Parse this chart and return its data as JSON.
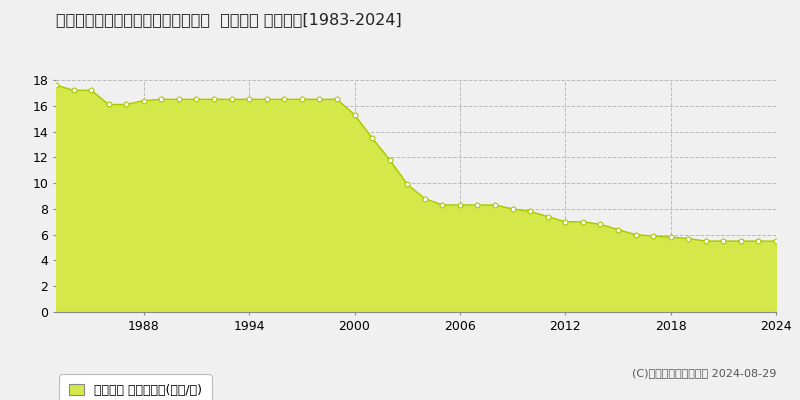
{
  "title": "新潟県長岡市城岡２丁目２３番１外  地価公示 地価推移[1983-2024]",
  "years": [
    1983,
    1984,
    1985,
    1986,
    1987,
    1988,
    1989,
    1990,
    1991,
    1992,
    1993,
    1994,
    1995,
    1996,
    1997,
    1998,
    1999,
    2000,
    2001,
    2002,
    2003,
    2004,
    2005,
    2006,
    2007,
    2008,
    2009,
    2010,
    2011,
    2012,
    2013,
    2014,
    2015,
    2016,
    2017,
    2018,
    2019,
    2020,
    2021,
    2022,
    2023,
    2024
  ],
  "values": [
    17.6,
    17.2,
    17.2,
    16.1,
    16.1,
    16.4,
    16.5,
    16.5,
    16.5,
    16.5,
    16.5,
    16.5,
    16.5,
    16.5,
    16.5,
    16.5,
    16.5,
    15.3,
    13.5,
    11.8,
    9.9,
    8.8,
    8.3,
    8.3,
    8.3,
    8.3,
    8.0,
    7.8,
    7.4,
    7.0,
    7.0,
    6.8,
    6.4,
    6.0,
    5.9,
    5.8,
    5.7,
    5.5,
    5.5,
    5.5,
    5.5,
    5.5
  ],
  "fill_color": "#d4e84a",
  "line_color": "#a8c800",
  "marker_facecolor": "#ffffff",
  "marker_edgecolor": "#a8c800",
  "bg_color": "#f0f0f0",
  "plot_bg_color": "#f0f0f0",
  "grid_color": "#bbbbbb",
  "ylim": [
    0,
    18
  ],
  "yticks": [
    0,
    2,
    4,
    6,
    8,
    10,
    12,
    14,
    16,
    18
  ],
  "xticks": [
    1988,
    1994,
    2000,
    2006,
    2012,
    2018,
    2024
  ],
  "legend_label": "地価公示 平均嵪単価(万円/嵪)",
  "copyright_text": "(C)土地価格ドットコム 2024-08-29",
  "title_fontsize": 11.5,
  "tick_fontsize": 9,
  "legend_fontsize": 9,
  "copyright_fontsize": 8
}
